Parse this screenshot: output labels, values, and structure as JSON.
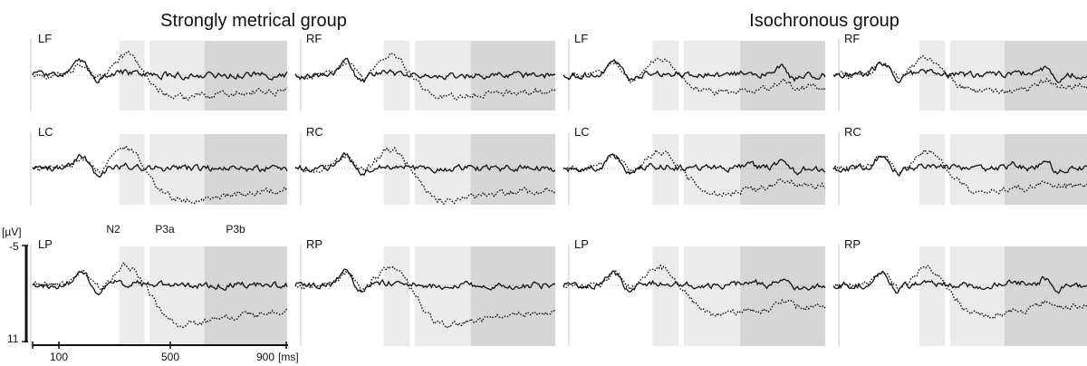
{
  "chart_data": {
    "type": "line",
    "groups": [
      {
        "title": "Strongly metrical group",
        "panels": [
          {
            "label": "LF"
          },
          {
            "label": "RF"
          },
          {
            "label": "LC"
          },
          {
            "label": "RC"
          },
          {
            "label": "LP"
          },
          {
            "label": "RP"
          }
        ]
      },
      {
        "title": "Isochronous group",
        "panels": [
          {
            "label": "LF"
          },
          {
            "label": "RF"
          },
          {
            "label": "LC"
          },
          {
            "label": "RC"
          },
          {
            "label": "LP"
          },
          {
            "label": "RP"
          }
        ]
      }
    ],
    "components": [
      {
        "name": "N2",
        "range_ms": [
          240,
          340
        ],
        "color": "#ebebeb"
      },
      {
        "name": "P3a",
        "range_ms": [
          360,
          575
        ],
        "color": "#ebebeb"
      },
      {
        "name": "P3b",
        "range_ms": [
          575,
          900
        ],
        "color": "#d6d6d6"
      }
    ],
    "x_axis": {
      "unit": "[ms]",
      "range": [
        -100,
        900
      ],
      "ticks": [
        {
          "value": 100,
          "label": "100"
        },
        {
          "value": 500,
          "label": "500"
        },
        {
          "value": 900,
          "label": "900"
        }
      ]
    },
    "y_axis": {
      "unit": "[µV]",
      "range": [
        -5,
        11
      ],
      "negative_up": true,
      "ticks": [
        {
          "value": -5,
          "label": "-5"
        },
        {
          "value": 11,
          "label": "11"
        }
      ]
    },
    "series": [
      {
        "style": "solid",
        "color": "#111111"
      },
      {
        "style": "dotted",
        "color": "#111111"
      }
    ]
  }
}
